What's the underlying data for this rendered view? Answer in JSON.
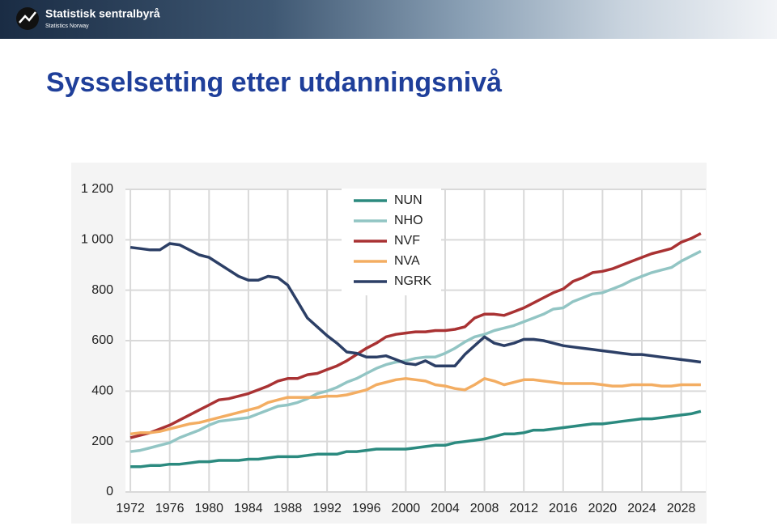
{
  "header": {
    "logo_name": "Statistisk sentralbyrå",
    "logo_sub": "Statistics Norway"
  },
  "chart_data": {
    "type": "line",
    "title": "Sysselsetting etter utdanningsnivå",
    "x": [
      1972,
      1973,
      1974,
      1975,
      1976,
      1977,
      1978,
      1979,
      1980,
      1981,
      1982,
      1983,
      1984,
      1985,
      1986,
      1987,
      1988,
      1989,
      1990,
      1991,
      1992,
      1993,
      1994,
      1995,
      1996,
      1997,
      1998,
      1999,
      2000,
      2001,
      2002,
      2003,
      2004,
      2005,
      2006,
      2007,
      2008,
      2009,
      2010,
      2011,
      2012,
      2013,
      2014,
      2015,
      2016,
      2017,
      2018,
      2019,
      2020,
      2021,
      2022,
      2023,
      2024,
      2025,
      2026,
      2027,
      2028,
      2029,
      2030
    ],
    "series": [
      {
        "name": "NUN",
        "color": "#2b8a7f",
        "values": [
          100,
          100,
          105,
          105,
          110,
          110,
          115,
          120,
          120,
          125,
          125,
          125,
          130,
          130,
          135,
          140,
          140,
          140,
          145,
          150,
          150,
          150,
          160,
          160,
          165,
          170,
          170,
          170,
          170,
          175,
          180,
          185,
          185,
          195,
          200,
          205,
          210,
          220,
          230,
          230,
          235,
          245,
          245,
          250,
          255,
          260,
          265,
          270,
          270,
          275,
          280,
          285,
          290,
          290,
          295,
          300,
          305,
          310,
          320
        ]
      },
      {
        "name": "NHO",
        "color": "#92c5c4",
        "values": [
          160,
          165,
          175,
          185,
          195,
          215,
          230,
          245,
          265,
          280,
          285,
          290,
          295,
          310,
          325,
          340,
          345,
          355,
          370,
          390,
          400,
          415,
          435,
          450,
          470,
          490,
          505,
          515,
          520,
          530,
          535,
          535,
          550,
          570,
          595,
          615,
          625,
          640,
          650,
          660,
          675,
          690,
          705,
          725,
          730,
          755,
          770,
          785,
          790,
          805,
          820,
          840,
          855,
          870,
          880,
          890,
          915,
          935,
          955
        ]
      },
      {
        "name": "NVF",
        "color": "#a93233",
        "values": [
          215,
          225,
          235,
          250,
          265,
          285,
          305,
          325,
          345,
          365,
          370,
          380,
          390,
          405,
          420,
          440,
          450,
          450,
          465,
          470,
          485,
          500,
          520,
          545,
          570,
          590,
          615,
          625,
          630,
          635,
          635,
          640,
          640,
          645,
          655,
          690,
          705,
          705,
          700,
          715,
          730,
          750,
          770,
          790,
          805,
          835,
          850,
          870,
          875,
          885,
          900,
          915,
          930,
          945,
          955,
          965,
          990,
          1005,
          1025
        ]
      },
      {
        "name": "NVA",
        "color": "#f3ad62",
        "values": [
          230,
          235,
          235,
          240,
          250,
          260,
          270,
          275,
          285,
          295,
          305,
          315,
          325,
          335,
          355,
          365,
          375,
          375,
          375,
          375,
          380,
          380,
          385,
          395,
          405,
          425,
          435,
          445,
          450,
          445,
          440,
          425,
          420,
          410,
          405,
          425,
          450,
          440,
          425,
          435,
          445,
          445,
          440,
          435,
          430,
          430,
          430,
          430,
          425,
          420,
          420,
          425,
          425,
          425,
          420,
          420,
          425,
          425,
          425
        ]
      },
      {
        "name": "NGRK",
        "color": "#2c3f66",
        "values": [
          970,
          965,
          960,
          960,
          985,
          980,
          960,
          940,
          930,
          905,
          880,
          855,
          840,
          840,
          855,
          850,
          820,
          755,
          690,
          655,
          620,
          590,
          555,
          550,
          535,
          535,
          540,
          525,
          510,
          505,
          520,
          500,
          500,
          500,
          545,
          580,
          615,
          590,
          580,
          590,
          605,
          605,
          600,
          590,
          580,
          575,
          570,
          565,
          560,
          555,
          550,
          545,
          545,
          540,
          535,
          530,
          525,
          520,
          515
        ]
      }
    ],
    "xlim": [
      1971.5,
      2030.5
    ],
    "xticks": [
      1972,
      1976,
      1980,
      1984,
      1988,
      1992,
      1996,
      2000,
      2004,
      2008,
      2012,
      2016,
      2020,
      2024,
      2028
    ],
    "ylim": [
      0,
      1200
    ],
    "yticks": [
      0,
      200,
      400,
      600,
      800,
      {
        "value": 1000,
        "label": "1 000"
      },
      {
        "value": 1200,
        "label": "1 200"
      }
    ],
    "grid": true,
    "legend": "top"
  }
}
